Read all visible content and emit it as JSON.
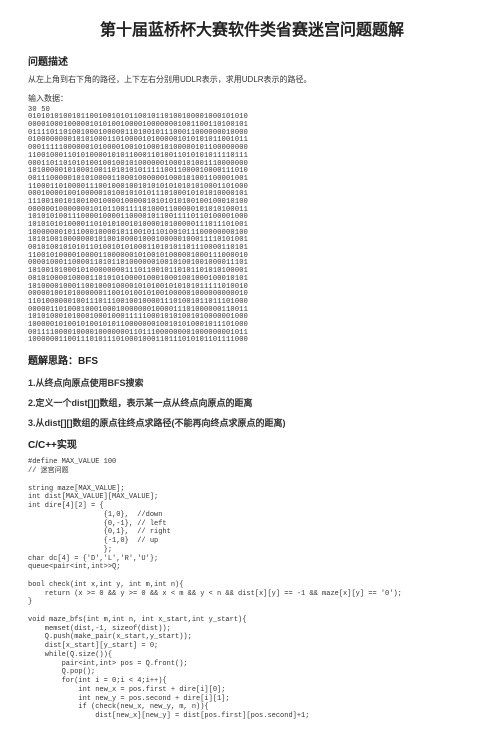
{
  "title": "第十届蓝桥杯大赛软件类省赛迷宫问题题解",
  "sections": {
    "problem_heading": "问题描述",
    "problem_desc": "从左上角到右下角的路径，上下左右分别用UDLR表示，求用UDLR表示的路径。",
    "input_label": "输入数据：",
    "dims": "30 50",
    "maze_rows": [
      "01010101001011001001010110010110100100001000101010",
      "00001000100000101010010000100000001001100110100101",
      "01111011010010001000001101001011100011000000010000",
      "01000000001010100011010000101000001010101011001011",
      "00011111000000101000010010100010100000101100000000",
      "11001000110101000010101100011010011010101011110111",
      "00011011010101001001001010000001000101001110000000",
      "10100000101000100110101010111110011000010000111010",
      "00111000001010100001100010000001000101001100001001",
      "11000110100001110010001001010101010101010001101000",
      "00010000100100000101001010101110100010101010000101",
      "11100100101001001000010000010101010100100100010100",
      "00000010000000101011001111010001100000101010100011",
      "10101010011100001000011000010110011110110100001000",
      "10101010100001101010100101000010100000111011101001",
      "10000000101100010000101100101101001011100000000100",
      "10101001000000010100100001000100000100011110101001",
      "00101001010101101001010100011010101101110000110101",
      "11001010000100001100000010100101000001000111000010",
      "00001000110000110101101000000100101001001000011101",
      "10100101000101000000001110110010110101101010100001",
      "00101000010000110101010000100010001001000100010101",
      "10100001000110010001000010101001010101011111010010",
      "00000100101000000110010100101001000001000000000010",
      "11010000001001110111001001000011101001011011101000",
      "00000110100010001000100000001000011101000000110011",
      "10101000101000100010001111100010101001010000001000",
      "10000010100101001010110000000100101010001011101000",
      "00111100001000010000000110111000000001000000001011",
      "10000001100111010111010001000110111010101101111000"
    ],
    "solution_heading": "题解思路：BFS",
    "step1": "1.从终点向原点使用BFS搜索",
    "step2": "2.定义一个dist[][]数组，表示某一点从终点向原点的距离",
    "step3": "3.从dist[][]数组的原点往终点求路径(不能再向终点求原点的距离)",
    "code_heading": "C/C++实现",
    "code": "#define MAX_VALUE 100\n// 迷宫问题\n\nstring maze[MAX_VALUE];\nint dist[MAX_VALUE][MAX_VALUE];\nint dire[4][2] = {\n                  {1,0},  //down\n                  {0,-1}, // left\n                  {0,1},  // right\n                  {-1,0}  // up\n                  };\nchar dc[4] = {'D','L','R','U'};\nqueue<pair<int,int>>Q;\n\nbool check(int x,int y, int m,int n){\n    return (x >= 0 && y >= 0 && x < m && y < n && dist[x][y] == -1 && maze[x][y] == '0');\n}\n\nvoid maze_bfs(int m,int n, int x_start,int y_start){\n    memset(dist,-1, sizeof(dist));\n    Q.push(make_pair(x_start,y_start));\n    dist[x_start][y_start] = 0;\n    while(Q.size()){\n        pair<int,int> pos = Q.front();\n        Q.pop();\n        for(int i = 0;i < 4;i++){\n            int new_x = pos.first + dire[i][0];\n            int new_y = pos.second + dire[i][1];\n            if (check(new_x, new_y, m, n)){\n                dist[new_x][new_y] = dist[pos.first][pos.second]+1;"
  },
  "colors": {
    "text": "#333333",
    "bg": "#ffffff"
  }
}
